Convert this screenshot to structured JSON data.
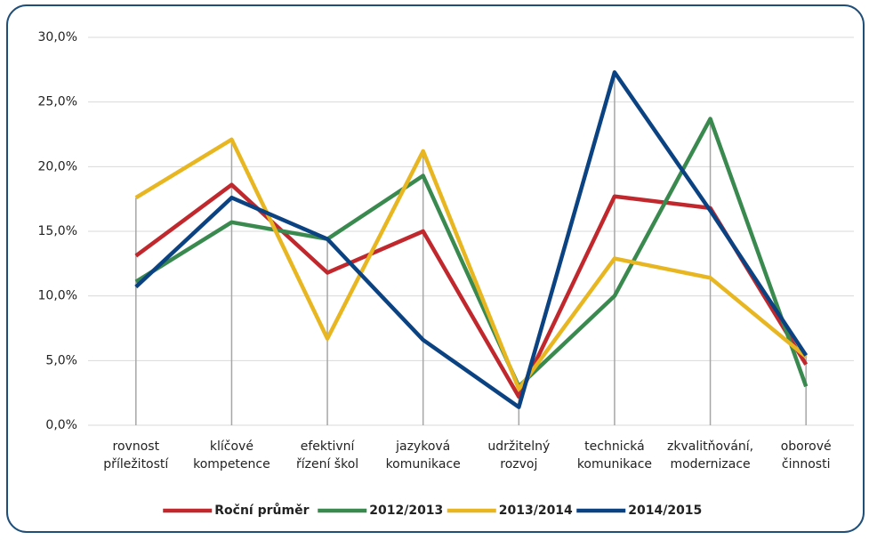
{
  "chart_data": {
    "type": "line",
    "categories": [
      "rovnost\npříležitostí",
      "klíčové\nkompetence",
      "efektivní\nřízení škol",
      "jazyková\nkomunikace",
      "udržitelný\nrozvoj",
      "technická\nkomunikace",
      "zkvalitňování,\nmodernizace",
      "oborové\nčinnosti"
    ],
    "series": [
      {
        "name": "Roční průměr",
        "color": "#c0282d",
        "values": [
          13.1,
          18.6,
          11.8,
          15.0,
          2.2,
          17.7,
          16.8,
          4.7
        ]
      },
      {
        "name": "2012/2013",
        "color": "#3a8a50",
        "values": [
          11.1,
          15.7,
          14.4,
          19.3,
          3.0,
          10.0,
          23.7,
          3.0
        ]
      },
      {
        "name": "2013/2014",
        "color": "#e8b621",
        "values": [
          17.6,
          22.1,
          6.7,
          21.2,
          2.8,
          12.9,
          11.4,
          5.3
        ]
      },
      {
        "name": "2014/2015",
        "color": "#0b4282",
        "values": [
          10.7,
          17.6,
          14.4,
          6.6,
          1.4,
          27.3,
          16.6,
          5.4
        ]
      }
    ],
    "ylim": [
      0,
      30
    ],
    "yticks": [
      {
        "value": 0,
        "label": "0,0%"
      },
      {
        "value": 5,
        "label": "5,0%"
      },
      {
        "value": 10,
        "label": "10,0%"
      },
      {
        "value": 15,
        "label": "15,0%"
      },
      {
        "value": 20,
        "label": "20,0%"
      },
      {
        "value": 25,
        "label": "25,0%"
      },
      {
        "value": 30,
        "label": "30,0%"
      }
    ],
    "grid": true,
    "legend": "bottom"
  }
}
